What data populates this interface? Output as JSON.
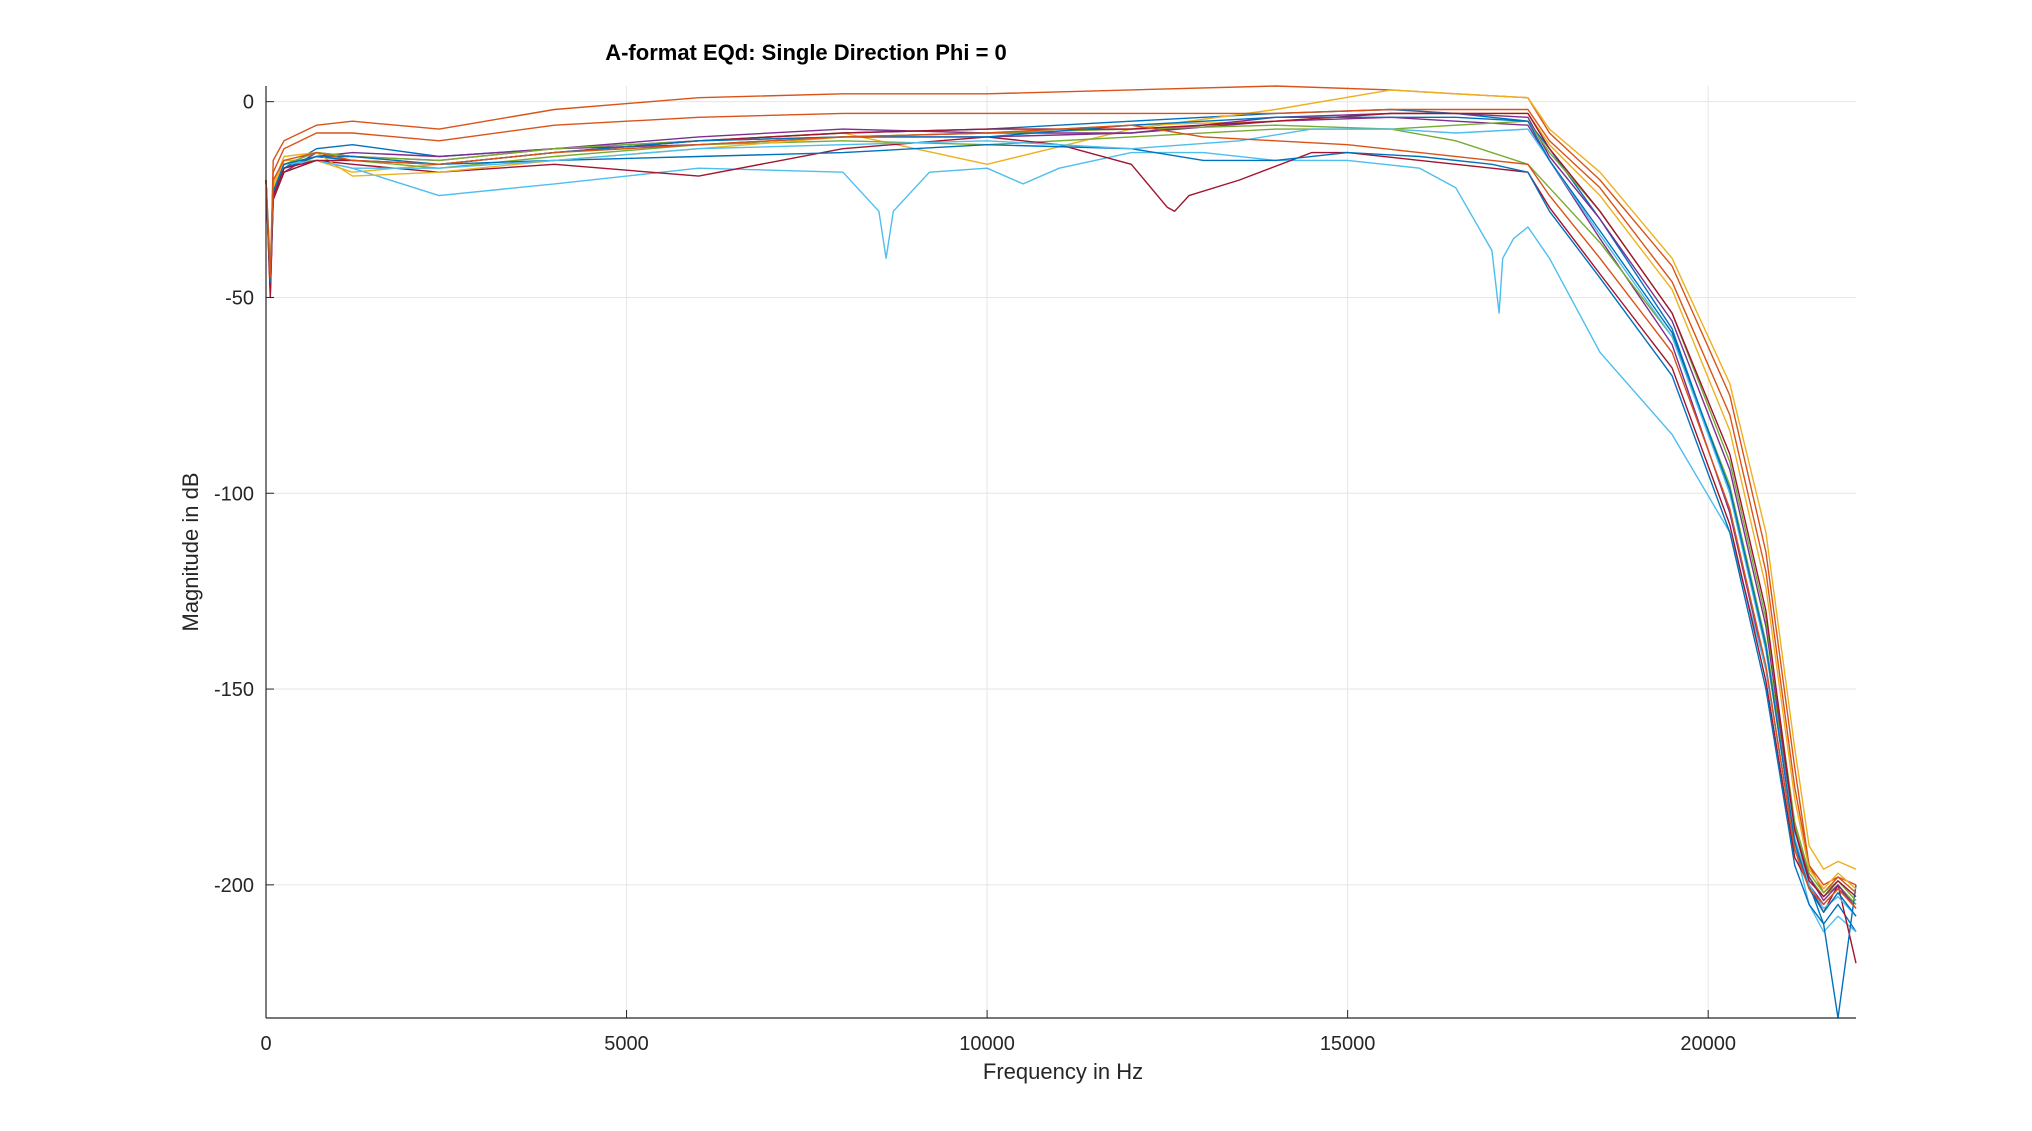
{
  "chart_data": {
    "type": "line",
    "title": "A-format EQd: Single Direction Phi = 0",
    "xlabel": "Frequency in Hz",
    "ylabel": "Magnitude in dB",
    "xlim": [
      0,
      22050
    ],
    "ylim": [
      -234,
      4
    ],
    "xticks": [
      0,
      5000,
      10000,
      15000,
      20000
    ],
    "xtick_labels": [
      "0",
      "5000",
      "10000",
      "15000",
      "20000"
    ],
    "yticks": [
      0,
      -50,
      -100,
      -150,
      -200
    ],
    "ytick_labels": [
      "0",
      "-50",
      "-100",
      "-150",
      "-200"
    ],
    "grid": true,
    "legend": "none",
    "series": [
      {
        "color": "#0072BD",
        "x": [
          0,
          60,
          100,
          250,
          700,
          1200,
          2400,
          4000,
          6000,
          8000,
          10000,
          12000,
          14000,
          15600,
          16500,
          17500,
          17800,
          18500,
          19500,
          20300,
          20800,
          21200,
          21400,
          21600,
          21800,
          22050
        ],
        "y": [
          -20,
          -45,
          -25,
          -17,
          -12,
          -11,
          -14,
          -12,
          -10,
          -8,
          -7,
          -5,
          -3,
          -2,
          -3,
          -5,
          -12,
          -30,
          -58,
          -100,
          -140,
          -185,
          -200,
          -210,
          -205,
          -212
        ]
      },
      {
        "color": "#D95319",
        "x": [
          0,
          60,
          100,
          250,
          700,
          1200,
          2400,
          4000,
          6000,
          8000,
          10000,
          12000,
          14000,
          15600,
          16500,
          17500,
          17800,
          18500,
          19500,
          20300,
          20800,
          21200,
          21400,
          21600,
          21800,
          22050
        ],
        "y": [
          -20,
          -45,
          -15,
          -10,
          -6,
          -5,
          -7,
          -2,
          1,
          2,
          2,
          3,
          4,
          3,
          2,
          1,
          -8,
          -20,
          -42,
          -75,
          -115,
          -170,
          -195,
          -200,
          -198,
          -200
        ]
      },
      {
        "color": "#EDB120",
        "x": [
          0,
          60,
          100,
          250,
          700,
          1200,
          2400,
          4000,
          6000,
          8000,
          10000,
          12000,
          14000,
          15600,
          16500,
          17500,
          17800,
          18500,
          19500,
          20300,
          20800,
          21200,
          21400,
          21600,
          21800,
          22050
        ],
        "y": [
          -20,
          -42,
          -22,
          -15,
          -15,
          -18,
          -16,
          -13,
          -10,
          -8,
          -16,
          -7,
          -2,
          3,
          2,
          1,
          -7,
          -18,
          -40,
          -72,
          -110,
          -165,
          -190,
          -196,
          -194,
          -196
        ]
      },
      {
        "color": "#7E2F8E",
        "x": [
          0,
          60,
          100,
          250,
          700,
          1200,
          2400,
          4000,
          6000,
          8000,
          10000,
          12000,
          14000,
          15600,
          16500,
          17500,
          17800,
          18500,
          19500,
          20300,
          20800,
          21200,
          21400,
          21600,
          21800,
          22050
        ],
        "y": [
          -20,
          -48,
          -25,
          -18,
          -13,
          -14,
          -15,
          -12,
          -11,
          -9,
          -9,
          -8,
          -5,
          -4,
          -5,
          -6,
          -15,
          -35,
          -62,
          -105,
          -145,
          -190,
          -200,
          -205,
          -201,
          -205
        ]
      },
      {
        "color": "#77AC30",
        "x": [
          0,
          60,
          100,
          250,
          700,
          1200,
          2400,
          4000,
          6000,
          8000,
          10000,
          12000,
          14000,
          15600,
          16500,
          17500,
          17800,
          18500,
          19500,
          20300,
          20800,
          21200,
          21400,
          21600,
          21800,
          22050
        ],
        "y": [
          -20,
          -46,
          -24,
          -17,
          -14,
          -15,
          -17,
          -14,
          -11,
          -10,
          -11,
          -9,
          -7,
          -7,
          -10,
          -16,
          -22,
          -36,
          -60,
          -98,
          -138,
          -185,
          -198,
          -203,
          -200,
          -205
        ]
      },
      {
        "color": "#4DBEEE",
        "x": [
          0,
          60,
          100,
          250,
          700,
          1200,
          2400,
          4000,
          6000,
          8000,
          8500,
          8600,
          8700,
          9200,
          10000,
          10500,
          11000,
          12000,
          13000,
          14000,
          15000,
          16000,
          16500,
          17000,
          17100,
          17150,
          17300,
          17500,
          17800,
          18500,
          19500,
          20300,
          20800,
          21200,
          21400,
          21600,
          21800,
          22050
        ],
        "y": [
          -20,
          -45,
          -25,
          -18,
          -15,
          -17,
          -24,
          -21,
          -17,
          -18,
          -28,
          -40,
          -28,
          -18,
          -17,
          -21,
          -17,
          -13,
          -13,
          -15,
          -15,
          -17,
          -22,
          -38,
          -54,
          -40,
          -35,
          -32,
          -40,
          -64,
          -85,
          -110,
          -145,
          -190,
          -205,
          -212,
          -208,
          -212
        ]
      },
      {
        "color": "#A2142F",
        "x": [
          0,
          60,
          100,
          250,
          700,
          1200,
          2400,
          4000,
          6000,
          8000,
          10000,
          11000,
          12000,
          12500,
          12600,
          12800,
          13500,
          14500,
          15000,
          16000,
          17000,
          17500,
          17800,
          18500,
          19500,
          20300,
          20800,
          21200,
          21400,
          21600,
          21800,
          22050
        ],
        "y": [
          -20,
          -50,
          -25,
          -18,
          -15,
          -16,
          -18,
          -16,
          -19,
          -12,
          -9,
          -11,
          -16,
          -27,
          -28,
          -24,
          -20,
          -13,
          -13,
          -15,
          -17,
          -18,
          -27,
          -44,
          -68,
          -108,
          -148,
          -193,
          -200,
          -207,
          -200,
          -220
        ]
      },
      {
        "color": "#0072BD",
        "x": [
          0,
          60,
          100,
          250,
          700,
          1200,
          2400,
          4000,
          6000,
          8000,
          10000,
          12000,
          13000,
          14000,
          15000,
          16000,
          17000,
          17500,
          17800,
          18500,
          19500,
          20300,
          20800,
          21200,
          21400,
          21600,
          21800,
          22050
        ],
        "y": [
          -20,
          -44,
          -24,
          -17,
          -14,
          -15,
          -16,
          -15,
          -14,
          -13,
          -11,
          -12,
          -15,
          -15,
          -13,
          -14,
          -16,
          -18,
          -28,
          -45,
          -70,
          -110,
          -150,
          -195,
          -205,
          -210,
          -234,
          -200
        ]
      },
      {
        "color": "#D95319",
        "x": [
          0,
          60,
          100,
          250,
          700,
          1200,
          2400,
          4000,
          6000,
          8000,
          10000,
          12000,
          14000,
          15600,
          16500,
          17500,
          17800,
          18500,
          19500,
          20300,
          20800,
          21200,
          21400,
          21600,
          21800,
          22050
        ],
        "y": [
          -20,
          -45,
          -18,
          -12,
          -8,
          -8,
          -10,
          -6,
          -4,
          -3,
          -3,
          -3,
          -3,
          -2,
          -2,
          -2,
          -10,
          -22,
          -46,
          -80,
          -120,
          -175,
          -195,
          -202,
          -198,
          -202
        ]
      },
      {
        "color": "#EDB120",
        "x": [
          0,
          60,
          100,
          250,
          700,
          1200,
          2400,
          4000,
          6000,
          8000,
          10000,
          12000,
          14000,
          15600,
          16500,
          17500,
          17800,
          18500,
          19500,
          20300,
          20800,
          21200,
          21400,
          21600,
          21800,
          22050
        ],
        "y": [
          -20,
          -42,
          -21,
          -14,
          -13,
          -19,
          -18,
          -15,
          -12,
          -9,
          -8,
          -6,
          -5,
          -3,
          -3,
          -3,
          -11,
          -24,
          -48,
          -84,
          -124,
          -178,
          -196,
          -201,
          -197,
          -201
        ]
      },
      {
        "color": "#7E2F8E",
        "x": [
          0,
          60,
          100,
          250,
          700,
          1200,
          2400,
          4000,
          6000,
          8000,
          10000,
          12000,
          14000,
          15600,
          16500,
          17500,
          17800,
          18500,
          19500,
          20300,
          20800,
          21200,
          21400,
          21600,
          21800,
          22050
        ],
        "y": [
          -20,
          -47,
          -23,
          -16,
          -14,
          -13,
          -14,
          -12,
          -9,
          -7,
          -8,
          -8,
          -4,
          -3,
          -3,
          -4,
          -14,
          -30,
          -56,
          -94,
          -134,
          -186,
          -198,
          -204,
          -200,
          -206
        ]
      },
      {
        "color": "#77AC30",
        "x": [
          0,
          60,
          100,
          250,
          700,
          1200,
          2400,
          4000,
          6000,
          8000,
          10000,
          12000,
          14000,
          15600,
          16500,
          17500,
          17800,
          18500,
          19500,
          20300,
          20800,
          21200,
          21400,
          21600,
          21800,
          22050
        ],
        "y": [
          -20,
          -45,
          -23,
          -16,
          -13,
          -14,
          -15,
          -12,
          -10,
          -9,
          -8,
          -7,
          -6,
          -7,
          -6,
          -5,
          -13,
          -28,
          -54,
          -92,
          -132,
          -184,
          -197,
          -202,
          -199,
          -204
        ]
      },
      {
        "color": "#4DBEEE",
        "x": [
          0,
          60,
          100,
          250,
          700,
          1200,
          2400,
          4000,
          6000,
          8000,
          10000,
          12000,
          13500,
          14500,
          15600,
          16500,
          17500,
          17800,
          18500,
          19500,
          20300,
          20800,
          21200,
          21400,
          21600,
          21800,
          22050
        ],
        "y": [
          -20,
          -43,
          -23,
          -16,
          -15,
          -17,
          -17,
          -15,
          -12,
          -11,
          -10,
          -12,
          -10,
          -7,
          -7,
          -8,
          -7,
          -15,
          -34,
          -60,
          -100,
          -140,
          -188,
          -200,
          -206,
          -203,
          -208
        ]
      },
      {
        "color": "#A2142F",
        "x": [
          0,
          60,
          100,
          250,
          700,
          1200,
          2400,
          4000,
          6000,
          8000,
          10000,
          12000,
          14000,
          15600,
          16500,
          17500,
          17800,
          18500,
          19500,
          20300,
          20800,
          21200,
          21400,
          21600,
          21800,
          22050
        ],
        "y": [
          -20,
          -49,
          -24,
          -17,
          -15,
          -15,
          -16,
          -13,
          -10,
          -8,
          -7,
          -7,
          -5,
          -3,
          -3,
          -3,
          -12,
          -28,
          -54,
          -90,
          -130,
          -186,
          -199,
          -203,
          -199,
          -203
        ]
      },
      {
        "color": "#0072BD",
        "x": [
          0,
          60,
          100,
          250,
          700,
          1200,
          2400,
          4000,
          6000,
          8000,
          10000,
          12000,
          14000,
          15600,
          16500,
          17500,
          17800,
          18500,
          19500,
          20300,
          20800,
          21200,
          21400,
          21600,
          21800,
          22050
        ],
        "y": [
          -20,
          -46,
          -23,
          -16,
          -14,
          -14,
          -16,
          -13,
          -10,
          -9,
          -9,
          -6,
          -4,
          -4,
          -4,
          -5,
          -15,
          -33,
          -59,
          -99,
          -139,
          -189,
          -201,
          -207,
          -202,
          -208
        ]
      },
      {
        "color": "#D95319",
        "x": [
          0,
          60,
          100,
          250,
          700,
          1200,
          2400,
          4000,
          6000,
          8000,
          10000,
          12000,
          13000,
          14000,
          15000,
          16000,
          17000,
          17500,
          17800,
          18500,
          19500,
          20300,
          20800,
          21200,
          21400,
          21600,
          21800,
          22050
        ],
        "y": [
          -20,
          -45,
          -20,
          -15,
          -13,
          -15,
          -16,
          -13,
          -11,
          -9,
          -8,
          -6,
          -9,
          -10,
          -11,
          -13,
          -15,
          -16,
          -24,
          -40,
          -64,
          -104,
          -144,
          -191,
          -201,
          -205,
          -201,
          -206
        ]
      }
    ]
  }
}
